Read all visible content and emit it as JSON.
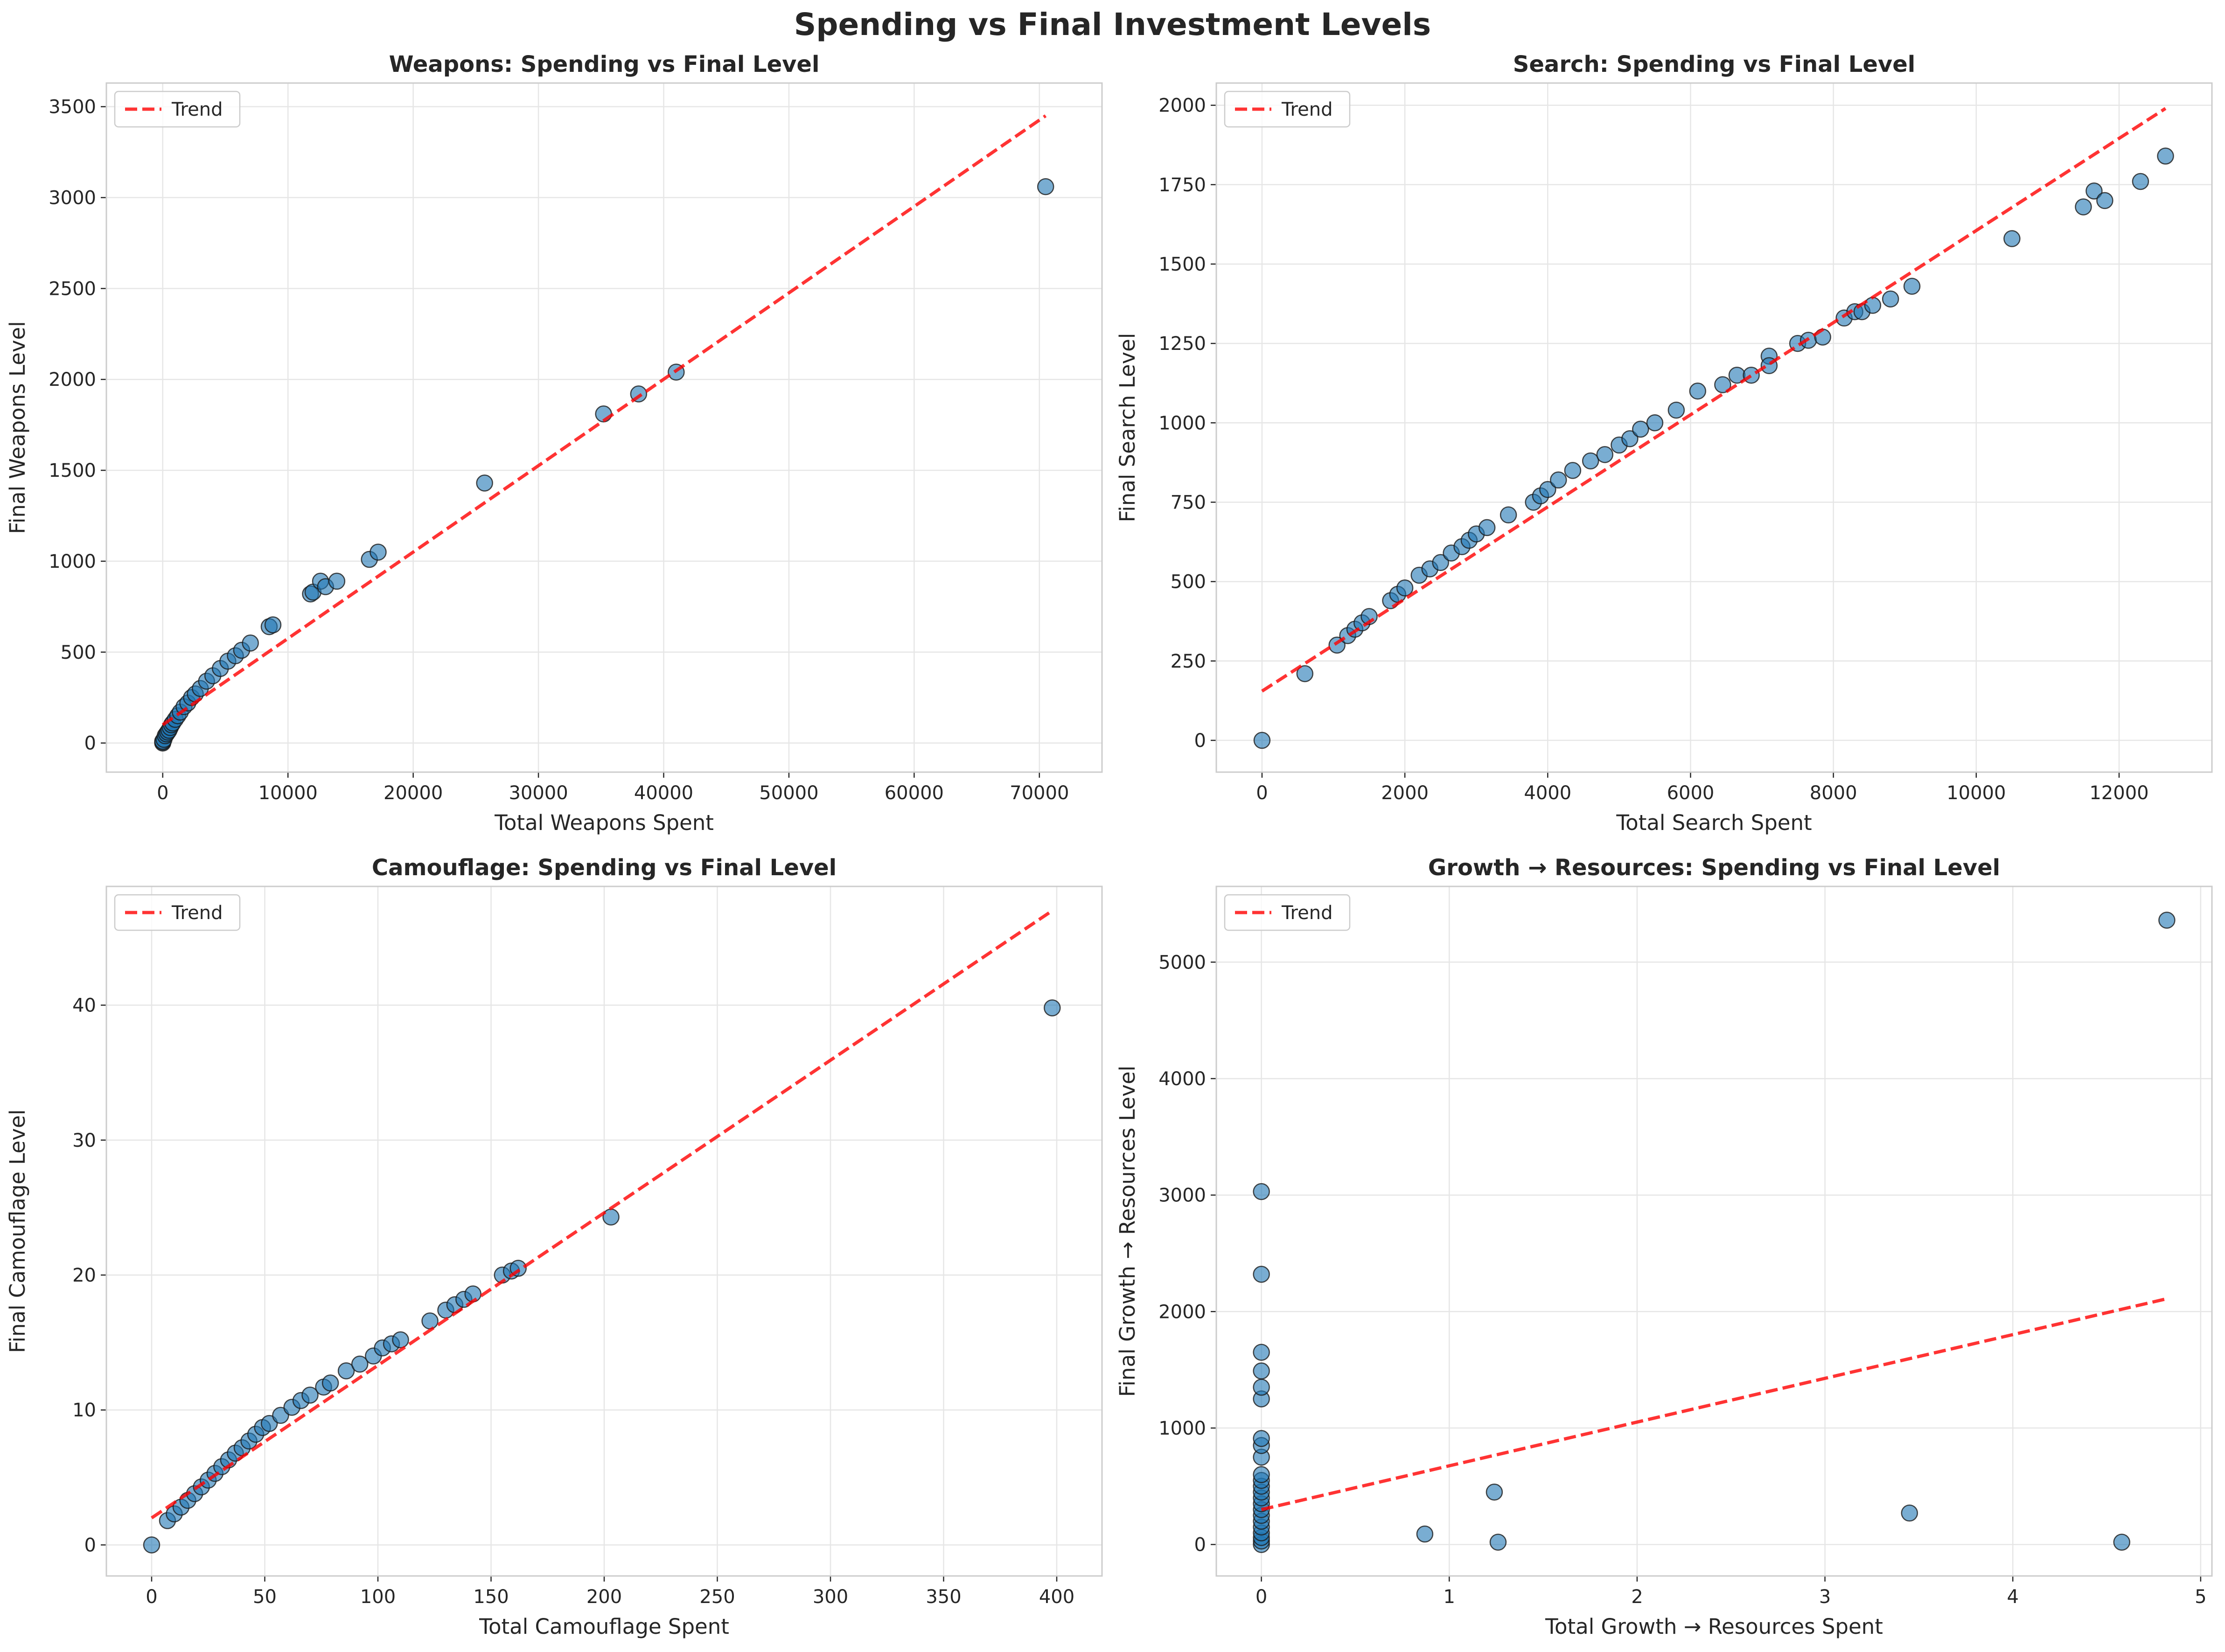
{
  "figure": {
    "title": "Spending vs Final Investment Levels"
  },
  "colors": {
    "points": "#1f77b4",
    "trend": "#ff0000",
    "grid": "#e6e6e6",
    "frame": "#cccccc"
  },
  "chart_data": [
    {
      "type": "scatter",
      "title": "Weapons: Spending vs Final Level",
      "xlabel": "Total Weapons Spent",
      "ylabel": "Final Weapons Level",
      "xlim": [
        -4500,
        75000
      ],
      "ylim": [
        -160,
        3630
      ],
      "xticks": [
        0,
        10000,
        20000,
        30000,
        40000,
        50000,
        60000,
        70000
      ],
      "yticks": [
        0,
        500,
        1000,
        1500,
        2000,
        2500,
        3000,
        3500
      ],
      "grid": true,
      "legend": {
        "label": "Trend",
        "placement": "top-left"
      },
      "points": [
        [
          0,
          0
        ],
        [
          0,
          5
        ],
        [
          0,
          10
        ],
        [
          100,
          20
        ],
        [
          200,
          40
        ],
        [
          300,
          50
        ],
        [
          400,
          60
        ],
        [
          500,
          70
        ],
        [
          600,
          85
        ],
        [
          700,
          100
        ],
        [
          800,
          110
        ],
        [
          1000,
          130
        ],
        [
          1200,
          150
        ],
        [
          1400,
          170
        ],
        [
          1700,
          200
        ],
        [
          2000,
          220
        ],
        [
          2300,
          250
        ],
        [
          2600,
          270
        ],
        [
          3000,
          300
        ],
        [
          3500,
          340
        ],
        [
          4000,
          370
        ],
        [
          4600,
          410
        ],
        [
          5200,
          450
        ],
        [
          5800,
          480
        ],
        [
          6300,
          510
        ],
        [
          7000,
          550
        ],
        [
          8500,
          640
        ],
        [
          8800,
          650
        ],
        [
          11800,
          820
        ],
        [
          12000,
          830
        ],
        [
          12600,
          890
        ],
        [
          13000,
          860
        ],
        [
          13900,
          890
        ],
        [
          16500,
          1010
        ],
        [
          17200,
          1050
        ],
        [
          25700,
          1430
        ],
        [
          35200,
          1810
        ],
        [
          38000,
          1920
        ],
        [
          41000,
          2040
        ],
        [
          70500,
          3060
        ]
      ],
      "trend": {
        "x": [
          0,
          70500
        ],
        "y": [
          100,
          3450
        ],
        "label": "Trend"
      }
    },
    {
      "type": "scatter",
      "title": "Search: Spending vs Final Level",
      "xlabel": "Total Search Spent",
      "ylabel": "Final Search Level",
      "xlim": [
        -640,
        13300
      ],
      "ylim": [
        -100,
        2070
      ],
      "xticks": [
        0,
        2000,
        4000,
        6000,
        8000,
        10000,
        12000
      ],
      "yticks": [
        0,
        250,
        500,
        750,
        1000,
        1250,
        1500,
        1750,
        2000
      ],
      "grid": true,
      "legend": {
        "label": "Trend",
        "placement": "top-left"
      },
      "points": [
        [
          0,
          0
        ],
        [
          600,
          210
        ],
        [
          1050,
          300
        ],
        [
          1200,
          330
        ],
        [
          1300,
          350
        ],
        [
          1400,
          370
        ],
        [
          1500,
          390
        ],
        [
          1800,
          440
        ],
        [
          1900,
          460
        ],
        [
          2000,
          480
        ],
        [
          2200,
          520
        ],
        [
          2350,
          540
        ],
        [
          2500,
          560
        ],
        [
          2650,
          590
        ],
        [
          2800,
          610
        ],
        [
          2900,
          630
        ],
        [
          3000,
          650
        ],
        [
          3150,
          670
        ],
        [
          3450,
          710
        ],
        [
          3800,
          750
        ],
        [
          3900,
          770
        ],
        [
          4000,
          790
        ],
        [
          4150,
          820
        ],
        [
          4350,
          850
        ],
        [
          4600,
          880
        ],
        [
          4800,
          900
        ],
        [
          5000,
          930
        ],
        [
          5150,
          950
        ],
        [
          5300,
          980
        ],
        [
          5500,
          1000
        ],
        [
          5800,
          1040
        ],
        [
          6100,
          1100
        ],
        [
          6450,
          1120
        ],
        [
          6650,
          1150
        ],
        [
          6850,
          1150
        ],
        [
          7100,
          1210
        ],
        [
          7100,
          1180
        ],
        [
          7500,
          1250
        ],
        [
          7650,
          1260
        ],
        [
          7850,
          1270
        ],
        [
          8150,
          1330
        ],
        [
          8300,
          1350
        ],
        [
          8400,
          1350
        ],
        [
          8550,
          1370
        ],
        [
          8800,
          1390
        ],
        [
          9100,
          1430
        ],
        [
          10500,
          1580
        ],
        [
          11500,
          1680
        ],
        [
          11650,
          1730
        ],
        [
          11800,
          1700
        ],
        [
          12300,
          1760
        ],
        [
          12650,
          1840
        ]
      ],
      "trend": {
        "x": [
          0,
          12650
        ],
        "y": [
          155,
          1990
        ],
        "label": "Trend"
      }
    },
    {
      "type": "scatter",
      "title": "Camouflage: Spending vs Final Level",
      "xlabel": "Total Camouflage Spent",
      "ylabel": "Final Camouflage Level",
      "xlim": [
        -20,
        420
      ],
      "ylim": [
        -2.3,
        48.8
      ],
      "xticks": [
        0,
        50,
        100,
        150,
        200,
        250,
        300,
        350,
        400
      ],
      "yticks": [
        0,
        10,
        20,
        30,
        40
      ],
      "grid": true,
      "legend": {
        "label": "Trend",
        "placement": "top-left"
      },
      "points": [
        [
          0,
          0
        ],
        [
          7,
          1.8
        ],
        [
          10,
          2.3
        ],
        [
          13,
          2.8
        ],
        [
          16,
          3.3
        ],
        [
          19,
          3.8
        ],
        [
          22,
          4.3
        ],
        [
          25,
          4.8
        ],
        [
          28,
          5.3
        ],
        [
          31,
          5.8
        ],
        [
          34,
          6.3
        ],
        [
          37,
          6.8
        ],
        [
          40,
          7.2
        ],
        [
          43,
          7.7
        ],
        [
          46,
          8.2
        ],
        [
          49,
          8.7
        ],
        [
          52,
          9
        ],
        [
          57,
          9.6
        ],
        [
          62,
          10.2
        ],
        [
          66,
          10.7
        ],
        [
          70,
          11.1
        ],
        [
          76,
          11.7
        ],
        [
          79,
          12
        ],
        [
          86,
          12.9
        ],
        [
          92,
          13.4
        ],
        [
          98,
          14
        ],
        [
          102,
          14.6
        ],
        [
          106,
          14.9
        ],
        [
          110,
          15.2
        ],
        [
          123,
          16.6
        ],
        [
          130,
          17.4
        ],
        [
          134,
          17.8
        ],
        [
          138,
          18.2
        ],
        [
          142,
          18.6
        ],
        [
          155,
          20
        ],
        [
          159,
          20.3
        ],
        [
          162,
          20.5
        ],
        [
          203,
          24.3
        ],
        [
          398,
          39.8
        ]
      ],
      "trend": {
        "x": [
          0,
          398
        ],
        "y": [
          2,
          47
        ],
        "label": "Trend"
      }
    },
    {
      "type": "scatter",
      "title": "Growth → Resources: Spending vs Final Level",
      "xlabel": "Total Growth → Resources Spent",
      "ylabel": "Final Growth → Resources Level",
      "xlim": [
        -0.24,
        5.06
      ],
      "ylim": [
        -270,
        5650
      ],
      "xticks": [
        0,
        1,
        2,
        3,
        4,
        5
      ],
      "yticks": [
        0,
        1000,
        2000,
        3000,
        4000,
        5000
      ],
      "grid": true,
      "legend": {
        "label": "Trend",
        "placement": "top-left"
      },
      "points": [
        [
          0,
          0
        ],
        [
          0,
          30
        ],
        [
          0,
          60
        ],
        [
          0,
          100
        ],
        [
          0,
          150
        ],
        [
          0,
          200
        ],
        [
          0,
          250
        ],
        [
          0,
          300
        ],
        [
          0,
          350
        ],
        [
          0,
          400
        ],
        [
          0,
          450
        ],
        [
          0,
          500
        ],
        [
          0,
          550
        ],
        [
          0,
          600
        ],
        [
          0,
          750
        ],
        [
          0,
          850
        ],
        [
          0,
          910
        ],
        [
          0,
          1250
        ],
        [
          0,
          1350
        ],
        [
          0,
          1490
        ],
        [
          0,
          1650
        ],
        [
          0,
          2320
        ],
        [
          0,
          3030
        ],
        [
          0.87,
          90
        ],
        [
          1.24,
          450
        ],
        [
          1.26,
          20
        ],
        [
          3.45,
          270
        ],
        [
          4.58,
          20
        ],
        [
          4.82,
          5360
        ]
      ],
      "trend": {
        "x": [
          0,
          4.82
        ],
        "y": [
          300,
          2110
        ],
        "label": "Trend"
      }
    }
  ]
}
